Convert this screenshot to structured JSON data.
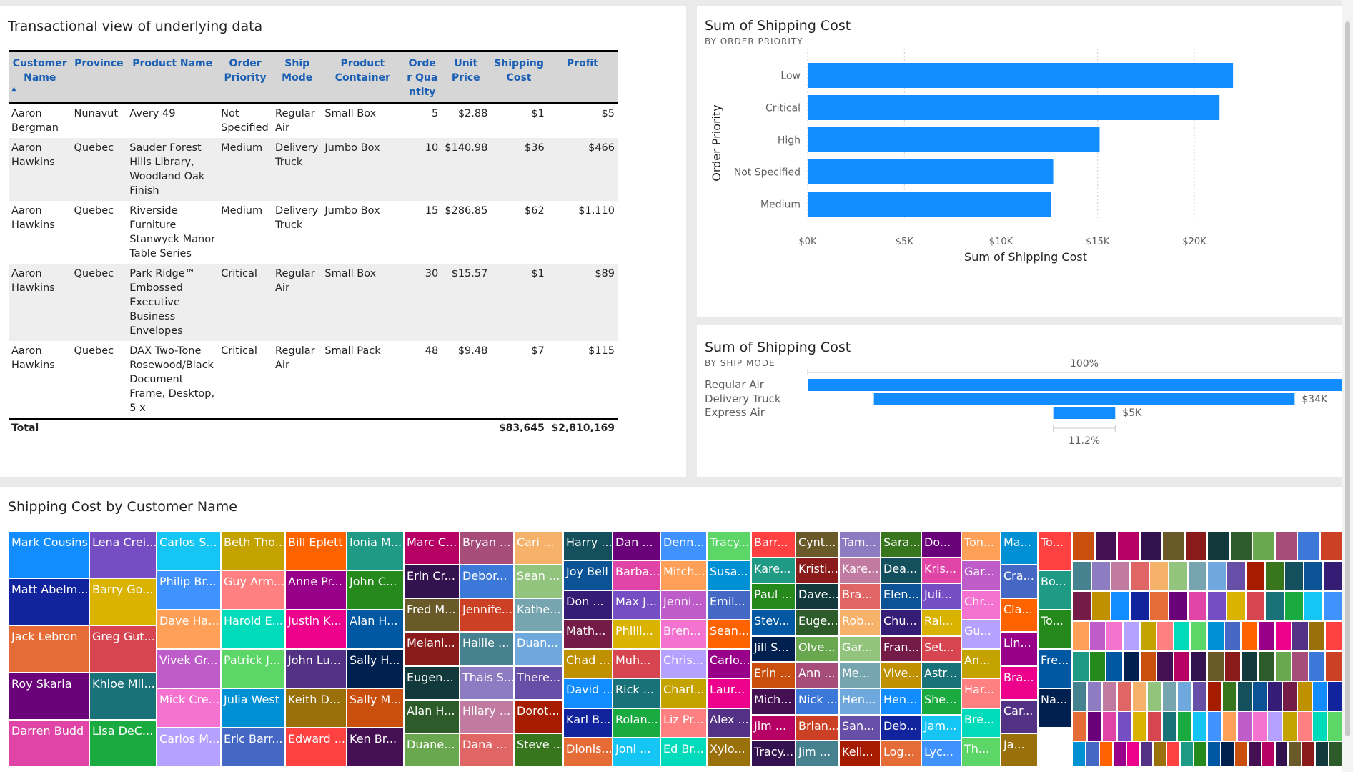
{
  "table": {
    "title": "Transactional view of underlying data",
    "headers": [
      "Customer Name",
      "Province",
      "Product Name",
      "Order Priority",
      "Ship Mode",
      "Product Container",
      "Order Quantity",
      "Unit Price",
      "Shipping Cost",
      "Profit"
    ],
    "rows": [
      [
        "Aaron Bergman",
        "Nunavut",
        "Avery 49",
        "Not Specified",
        "Regular Air",
        "Small Box",
        "5",
        "$2.88",
        "$1",
        "$5"
      ],
      [
        "Aaron Hawkins",
        "Quebec",
        "Sauder Forest Hills Library, Woodland Oak Finish",
        "Medium",
        "Delivery Truck",
        "Jumbo Box",
        "10",
        "$140.98",
        "$36",
        "$466"
      ],
      [
        "Aaron Hawkins",
        "Quebec",
        "Riverside Furniture Stanwyck Manor Table Series",
        "Medium",
        "Delivery Truck",
        "Jumbo Box",
        "15",
        "$286.85",
        "$62",
        "$1,110"
      ],
      [
        "Aaron Hawkins",
        "Quebec",
        "Park Ridge™ Embossed Executive Business Envelopes",
        "Critical",
        "Regular Air",
        "Small Box",
        "30",
        "$15.57",
        "$1",
        "$89"
      ],
      [
        "Aaron Hawkins",
        "Quebec",
        "DAX Two-Tone Rosewood/Black Document Frame, Desktop, 5 x",
        "Critical",
        "Regular Air",
        "Small Pack",
        "48",
        "$9.48",
        "$7",
        "$115"
      ]
    ],
    "total_label": "Total",
    "total_shipping": "$83,645",
    "total_profit": "$2,810,169"
  },
  "chart_data": [
    {
      "type": "bar",
      "orientation": "horizontal",
      "title": "Sum of Shipping Cost",
      "subtitle": "BY ORDER PRIORITY",
      "xlabel": "Sum of Shipping Cost",
      "ylabel": "Order Priority",
      "categories": [
        "Low",
        "Critical",
        "High",
        "Not Specified",
        "Medium"
      ],
      "values": [
        22000,
        21300,
        15100,
        12700,
        12600
      ],
      "xlim": [
        0,
        22000
      ],
      "ticks": [
        0,
        5000,
        10000,
        15000,
        20000
      ],
      "tick_labels": [
        "$0K",
        "$5K",
        "$10K",
        "$15K",
        "$20K"
      ],
      "grid": true,
      "bar_color": "#118dff"
    },
    {
      "type": "bar",
      "orientation": "horizontal",
      "variant": "funnel",
      "title": "Sum of Shipping Cost",
      "subtitle": "BY SHIP MODE",
      "categories": [
        "Regular Air",
        "Delivery Truck",
        "Express Air"
      ],
      "values": [
        44700,
        34000,
        5000
      ],
      "data_labels": [
        "",
        "$34K",
        "$5K"
      ],
      "top_label": "100%",
      "bottom_label": "11.2%",
      "bar_color": "#118dff"
    },
    {
      "type": "treemap",
      "title": "Shipping Cost by Customer Name",
      "labels": [
        "Mark Cousins",
        "Matt Abelm...",
        "Jack Lebron",
        "Roy Skaria",
        "Darren Budd",
        "Lena Crei...",
        "Barry Go...",
        "Greg Gut...",
        "Khloe Mil...",
        "Lisa DeC...",
        "Carlos S...",
        "Philip Br...",
        "Dave Ha...",
        "Vivek Gr...",
        "Mick Cre...",
        "Carlos M...",
        "Beth Tho...",
        "Guy Arm...",
        "Harold E...",
        "Patrick J...",
        "Julia West",
        "Eric Barr...",
        "Bill Eplett",
        "Anne Pr...",
        "Justin K...",
        "John Lu...",
        "Keith D...",
        "Edward ...",
        "Ionia M...",
        "John C...",
        "Alan H...",
        "Sally H...",
        "Sally M...",
        "Ken Br...",
        "Marc C...",
        "Erin Cr...",
        "Fred M...",
        "Melani...",
        "Eugen...",
        "Alan H...",
        "Duane...",
        "Bryan ...",
        "Debor...",
        "Jennife...",
        "Hallie ...",
        "Thais S...",
        "Hilary ...",
        "Dana ...",
        "Cari ...",
        "Sean ...",
        "Kathe...",
        "Duan...",
        "There...",
        "Dorot...",
        "Steve ...",
        "Harry ...",
        "Joy Bell",
        "Don ...",
        "Math...",
        "Chad ...",
        "David ...",
        "Karl B...",
        "Dionis...",
        "Dan ...",
        "Barba...",
        "Max J...",
        "Philli...",
        "Muh...",
        "Rick ...",
        "Rolan...",
        "Joni ...",
        "Denn...",
        "Mitch...",
        "Jenni...",
        "Bren...",
        "Chris...",
        "Charl...",
        "Liz Pr...",
        "Ed Br...",
        "Tracy...",
        "Susa...",
        "Emil...",
        "Sean...",
        "Carlo...",
        "Laur...",
        "Alex ...",
        "Xylo...",
        "Barr...",
        "Kare...",
        "Paul ...",
        "Stev...",
        "Jill S...",
        "Erin ...",
        "Mich...",
        "Jim ...",
        "Tracy...",
        "Cynt...",
        "Kristi...",
        "Dave...",
        "Euge...",
        "Olve...",
        "Ann ...",
        "Nick ...",
        "Brian...",
        "Jim ...",
        "Tam...",
        "Kare...",
        "Bra...",
        "Rob...",
        "Gar...",
        "Me...",
        "Hen...",
        "San...",
        "Kell...",
        "Sara...",
        "Dea...",
        "Elen...",
        "Chu...",
        "Fran...",
        "Vive...",
        "Hen...",
        "Deb...",
        "Log...",
        "Do...",
        "Kris...",
        "Juli...",
        "Ral...",
        "Set...",
        "Astr...",
        "She...",
        "Jam...",
        "Lyc...",
        "Ton...",
        "Gar...",
        "Chr...",
        "Gu...",
        "An...",
        "Har...",
        "Bre...",
        "Th...",
        "Ma...",
        "Cra...",
        "Cla...",
        "Lin...",
        "Bra...",
        "Car...",
        "Ja...",
        "To...",
        "Bo...",
        "To...",
        "Fre...",
        "Na..."
      ]
    }
  ],
  "treemap_palette": [
    "#118dff",
    "#12239e",
    "#e66c37",
    "#6b007b",
    "#e044a7",
    "#744ec2",
    "#d9b300",
    "#d64550",
    "#197278",
    "#1aab40",
    "#15c6f4",
    "#4092ff",
    "#ffa058",
    "#be5dc9",
    "#f472d0",
    "#b5a1ff",
    "#c4a200",
    "#ff8080",
    "#00dbbc",
    "#5bd667",
    "#0091d5",
    "#4668c5",
    "#ff6300",
    "#99008a",
    "#ec008c",
    "#533285",
    "#99700a",
    "#ff4141",
    "#1f9a85",
    "#25891c",
    "#0057a2",
    "#002050",
    "#c94f0f",
    "#450f54",
    "#b60064",
    "#34124f",
    "#6a5a29",
    "#8b1a1a",
    "#12393b",
    "#2d5b2a",
    "#6aa84f",
    "#a64d79",
    "#3c78d8",
    "#cc4125",
    "#45818e",
    "#8e7cc3",
    "#c27ba0",
    "#e06666",
    "#f6b26b",
    "#93c47d",
    "#76a5af",
    "#6fa8dc",
    "#674ea7",
    "#a61c00",
    "#38761d",
    "#134f5c",
    "#0b5394",
    "#351c75",
    "#741b47",
    "#bf9000"
  ]
}
